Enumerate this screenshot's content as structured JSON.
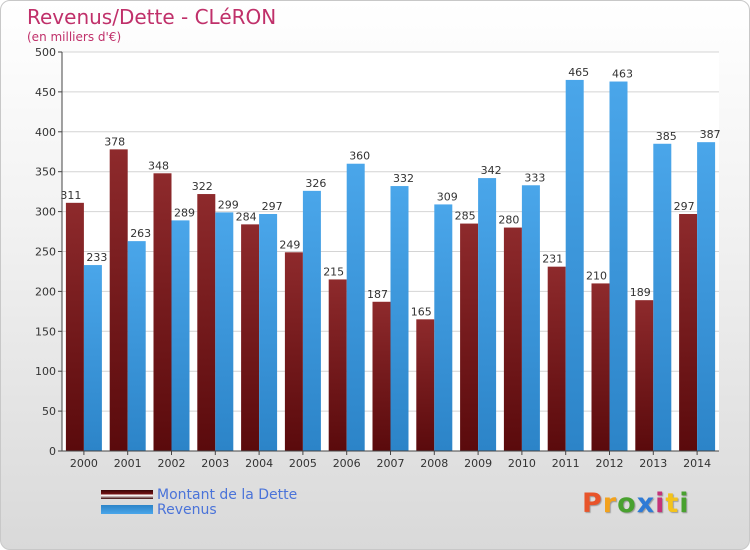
{
  "title": "Revenus/Dette - CLéRON",
  "subtitle": "(en milliers d'€)",
  "colors": {
    "dette": "#7a1416",
    "revenus": "#3a96dc",
    "title": "#c0306a",
    "legend_text": "#4a73d9"
  },
  "legend": [
    {
      "label": "Montant de la Dette",
      "color": "#6a0e10"
    },
    {
      "label": "Revenus",
      "color": "#3a96dc"
    }
  ],
  "logo": {
    "text": "Proxiti",
    "colors": [
      "#e8542a",
      "#f3a21c",
      "#49a12f",
      "#2f7bd6",
      "#c4327a",
      "#f3c31c",
      "#49a12f"
    ]
  },
  "chart_data": {
    "type": "bar",
    "categories": [
      "2000",
      "2001",
      "2002",
      "2003",
      "2004",
      "2005",
      "2006",
      "2007",
      "2008",
      "2009",
      "2010",
      "2011",
      "2012",
      "2013",
      "2014"
    ],
    "series": [
      {
        "name": "Montant de la Dette",
        "values": [
          311,
          378,
          348,
          322,
          284,
          249,
          215,
          187,
          165,
          285,
          280,
          231,
          210,
          189,
          297
        ]
      },
      {
        "name": "Revenus",
        "values": [
          233,
          263,
          289,
          299,
          297,
          326,
          360,
          332,
          309,
          342,
          333,
          465,
          463,
          385,
          387
        ]
      }
    ],
    "ylim": [
      0,
      500
    ],
    "yticks": [
      0,
      50,
      100,
      150,
      200,
      250,
      300,
      350,
      400,
      450,
      500
    ],
    "grid": true,
    "legend_position": "bottom-left"
  }
}
